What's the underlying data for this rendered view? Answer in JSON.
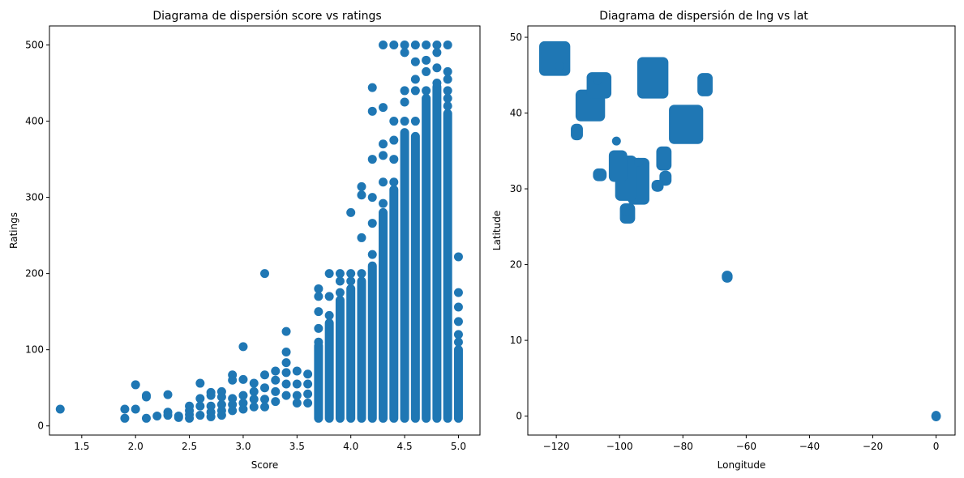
{
  "chart_data": [
    {
      "type": "scatter",
      "title": "Diagrama de dispersión score vs ratings",
      "xlabel": "Score",
      "ylabel": "Ratings",
      "xlim": [
        1.2,
        5.2
      ],
      "ylim": [
        -12,
        525
      ],
      "xticks": [
        1.5,
        2.0,
        2.5,
        3.0,
        3.5,
        4.0,
        4.5,
        5.0
      ],
      "xtick_labels": [
        "1.5",
        "2.0",
        "2.5",
        "3.0",
        "3.5",
        "4.0",
        "4.5",
        "5.0"
      ],
      "yticks": [
        0,
        100,
        200,
        300,
        400,
        500
      ],
      "ytick_labels": [
        "0",
        "100",
        "200",
        "300",
        "400",
        "500"
      ],
      "grid": false,
      "series": [
        {
          "color": "#1f77b4",
          "points": [
            [
              1.3,
              22
            ],
            [
              1.9,
              22
            ],
            [
              1.9,
              10
            ],
            [
              2.0,
              54
            ],
            [
              2.0,
              22
            ],
            [
              2.1,
              40
            ],
            [
              2.1,
              38
            ],
            [
              2.1,
              10
            ],
            [
              2.2,
              13
            ],
            [
              2.3,
              41
            ],
            [
              2.3,
              18
            ],
            [
              2.3,
              14
            ],
            [
              2.4,
              13
            ],
            [
              2.4,
              11
            ],
            [
              2.5,
              26
            ],
            [
              2.5,
              20
            ],
            [
              2.5,
              15
            ],
            [
              2.5,
              10
            ],
            [
              2.6,
              56
            ],
            [
              2.6,
              36
            ],
            [
              2.6,
              26
            ],
            [
              2.6,
              14
            ],
            [
              2.7,
              44
            ],
            [
              2.7,
              40
            ],
            [
              2.7,
              26
            ],
            [
              2.7,
              18
            ],
            [
              2.7,
              12
            ],
            [
              2.8,
              45
            ],
            [
              2.8,
              38
            ],
            [
              2.8,
              28
            ],
            [
              2.8,
              20
            ],
            [
              2.8,
              14
            ],
            [
              2.9,
              67
            ],
            [
              2.9,
              60
            ],
            [
              2.9,
              36
            ],
            [
              2.9,
              28
            ],
            [
              2.9,
              20
            ],
            [
              3.0,
              104
            ],
            [
              3.0,
              61
            ],
            [
              3.0,
              40
            ],
            [
              3.0,
              30
            ],
            [
              3.0,
              22
            ],
            [
              3.1,
              56
            ],
            [
              3.1,
              45
            ],
            [
              3.1,
              35
            ],
            [
              3.1,
              25
            ],
            [
              3.2,
              200
            ],
            [
              3.2,
              67
            ],
            [
              3.2,
              50
            ],
            [
              3.2,
              35
            ],
            [
              3.2,
              25
            ],
            [
              3.3,
              72
            ],
            [
              3.3,
              60
            ],
            [
              3.3,
              45
            ],
            [
              3.3,
              32
            ],
            [
              3.4,
              124
            ],
            [
              3.4,
              97
            ],
            [
              3.4,
              83
            ],
            [
              3.4,
              70
            ],
            [
              3.4,
              55
            ],
            [
              3.4,
              40
            ],
            [
              3.5,
              72
            ],
            [
              3.5,
              55
            ],
            [
              3.5,
              40
            ],
            [
              3.5,
              30
            ],
            [
              3.6,
              68
            ],
            [
              3.6,
              55
            ],
            [
              3.6,
              42
            ],
            [
              3.6,
              30
            ],
            [
              3.7,
              180
            ],
            [
              3.7,
              170
            ],
            [
              3.7,
              150
            ],
            [
              3.7,
              128
            ],
            [
              3.7,
              110
            ],
            [
              3.8,
              200
            ],
            [
              3.8,
              170
            ],
            [
              3.8,
              145
            ],
            [
              3.9,
              200
            ],
            [
              3.9,
              190
            ],
            [
              3.9,
              175
            ],
            [
              4.0,
              280
            ],
            [
              4.0,
              200
            ],
            [
              4.0,
              190
            ],
            [
              4.1,
              314
            ],
            [
              4.1,
              303
            ],
            [
              4.1,
              247
            ],
            [
              4.1,
              200
            ],
            [
              4.2,
              444
            ],
            [
              4.2,
              413
            ],
            [
              4.2,
              350
            ],
            [
              4.2,
              300
            ],
            [
              4.2,
              266
            ],
            [
              4.2,
              225
            ],
            [
              4.3,
              500
            ],
            [
              4.3,
              418
            ],
            [
              4.3,
              370
            ],
            [
              4.3,
              355
            ],
            [
              4.3,
              320
            ],
            [
              4.3,
              292
            ],
            [
              4.4,
              500
            ],
            [
              4.4,
              400
            ],
            [
              4.4,
              375
            ],
            [
              4.4,
              350
            ],
            [
              4.4,
              320
            ],
            [
              4.5,
              500
            ],
            [
              4.5,
              490
            ],
            [
              4.5,
              440
            ],
            [
              4.5,
              425
            ],
            [
              4.5,
              400
            ],
            [
              4.6,
              500
            ],
            [
              4.6,
              478
            ],
            [
              4.6,
              455
            ],
            [
              4.6,
              440
            ],
            [
              4.6,
              400
            ],
            [
              4.7,
              500
            ],
            [
              4.7,
              480
            ],
            [
              4.7,
              465
            ],
            [
              4.7,
              440
            ],
            [
              4.8,
              500
            ],
            [
              4.8,
              490
            ],
            [
              4.8,
              470
            ],
            [
              4.8,
              450
            ],
            [
              4.9,
              500
            ],
            [
              4.9,
              465
            ],
            [
              4.9,
              455
            ],
            [
              4.9,
              440
            ],
            [
              4.9,
              430
            ],
            [
              4.9,
              420
            ],
            [
              5.0,
              222
            ],
            [
              5.0,
              175
            ],
            [
              5.0,
              156
            ],
            [
              5.0,
              137
            ],
            [
              5.0,
              120
            ],
            [
              5.0,
              110
            ]
          ],
          "columns": [
            {
              "x": 3.7,
              "y_min": 10,
              "y_max": 105
            },
            {
              "x": 3.8,
              "y_min": 10,
              "y_max": 135
            },
            {
              "x": 3.9,
              "y_min": 10,
              "y_max": 165
            },
            {
              "x": 4.0,
              "y_min": 10,
              "y_max": 180
            },
            {
              "x": 4.1,
              "y_min": 10,
              "y_max": 190
            },
            {
              "x": 4.2,
              "y_min": 10,
              "y_max": 210
            },
            {
              "x": 4.3,
              "y_min": 10,
              "y_max": 280
            },
            {
              "x": 4.4,
              "y_min": 10,
              "y_max": 310
            },
            {
              "x": 4.5,
              "y_min": 10,
              "y_max": 385
            },
            {
              "x": 4.6,
              "y_min": 10,
              "y_max": 380
            },
            {
              "x": 4.7,
              "y_min": 10,
              "y_max": 430
            },
            {
              "x": 4.8,
              "y_min": 10,
              "y_max": 445
            },
            {
              "x": 4.9,
              "y_min": 10,
              "y_max": 410
            },
            {
              "x": 5.0,
              "y_min": 10,
              "y_max": 100
            }
          ]
        }
      ]
    },
    {
      "type": "scatter",
      "title": "Diagrama de dispersión de lng vs lat",
      "xlabel": "Longitude",
      "ylabel": "Latitude",
      "xlim": [
        -129,
        6
      ],
      "ylim": [
        -2.5,
        51.5
      ],
      "xticks": [
        -120,
        -100,
        -80,
        -60,
        -40,
        -20,
        0
      ],
      "xtick_labels": [
        "−120",
        "−100",
        "−80",
        "−60",
        "−40",
        "−20",
        "0"
      ],
      "yticks": [
        0,
        10,
        20,
        30,
        40,
        50
      ],
      "ytick_labels": [
        "0",
        "10",
        "20",
        "30",
        "40",
        "50"
      ],
      "grid": false,
      "series": [
        {
          "color": "#1f77b4",
          "clusters": [
            {
              "lng_min": -124,
              "lng_max": -117,
              "lat_min": 45.5,
              "lat_max": 48.9
            },
            {
              "lng_min": -112.5,
              "lng_max": -106,
              "lat_min": 39.5,
              "lat_max": 42.5
            },
            {
              "lng_min": -109,
              "lng_max": -104,
              "lat_min": 42.5,
              "lat_max": 44.8
            },
            {
              "lng_min": -114,
              "lng_max": -113,
              "lat_min": 37,
              "lat_max": 38
            },
            {
              "lng_min": -96,
              "lng_max": -92,
              "lat_min": 28.5,
              "lat_max": 33.5
            },
            {
              "lng_min": -100,
              "lng_max": -96,
              "lat_min": 29,
              "lat_max": 33.8
            },
            {
              "lng_min": -98.5,
              "lng_max": -96.5,
              "lat_min": 26,
              "lat_max": 27.5
            },
            {
              "lng_min": -102,
              "lng_max": -99,
              "lat_min": 31.5,
              "lat_max": 34.5
            },
            {
              "lng_min": -107,
              "lng_max": -105.5,
              "lat_min": 31.6,
              "lat_max": 32.1
            },
            {
              "lng_min": -93,
              "lng_max": -86,
              "lat_min": 42.5,
              "lat_max": 46.8
            },
            {
              "lng_min": -83,
              "lng_max": -75,
              "lat_min": 36.5,
              "lat_max": 40.5
            },
            {
              "lng_min": -87,
              "lng_max": -85,
              "lat_min": 33,
              "lat_max": 35
            },
            {
              "lng_min": -74,
              "lng_max": -72,
              "lat_min": 42.8,
              "lat_max": 44.7
            },
            {
              "lng_min": -86,
              "lng_max": -85,
              "lat_min": 31,
              "lat_max": 31.8
            },
            {
              "lng_min": -88.5,
              "lng_max": -87.5,
              "lat_min": 30.2,
              "lat_max": 30.6
            },
            {
              "lng_min": -66.3,
              "lng_max": -65.7,
              "lat_min": 18.2,
              "lat_max": 18.6
            },
            {
              "lng_min": -0.1,
              "lng_max": 0.1,
              "lat_min": -0.1,
              "lat_max": 0.1
            }
          ],
          "points": [
            [
              -101,
              36.3
            ],
            [
              -107,
              44.3
            ],
            [
              -119,
              46.2
            ],
            [
              -98,
              27
            ],
            [
              -94,
              33.5
            ]
          ]
        }
      ]
    }
  ]
}
